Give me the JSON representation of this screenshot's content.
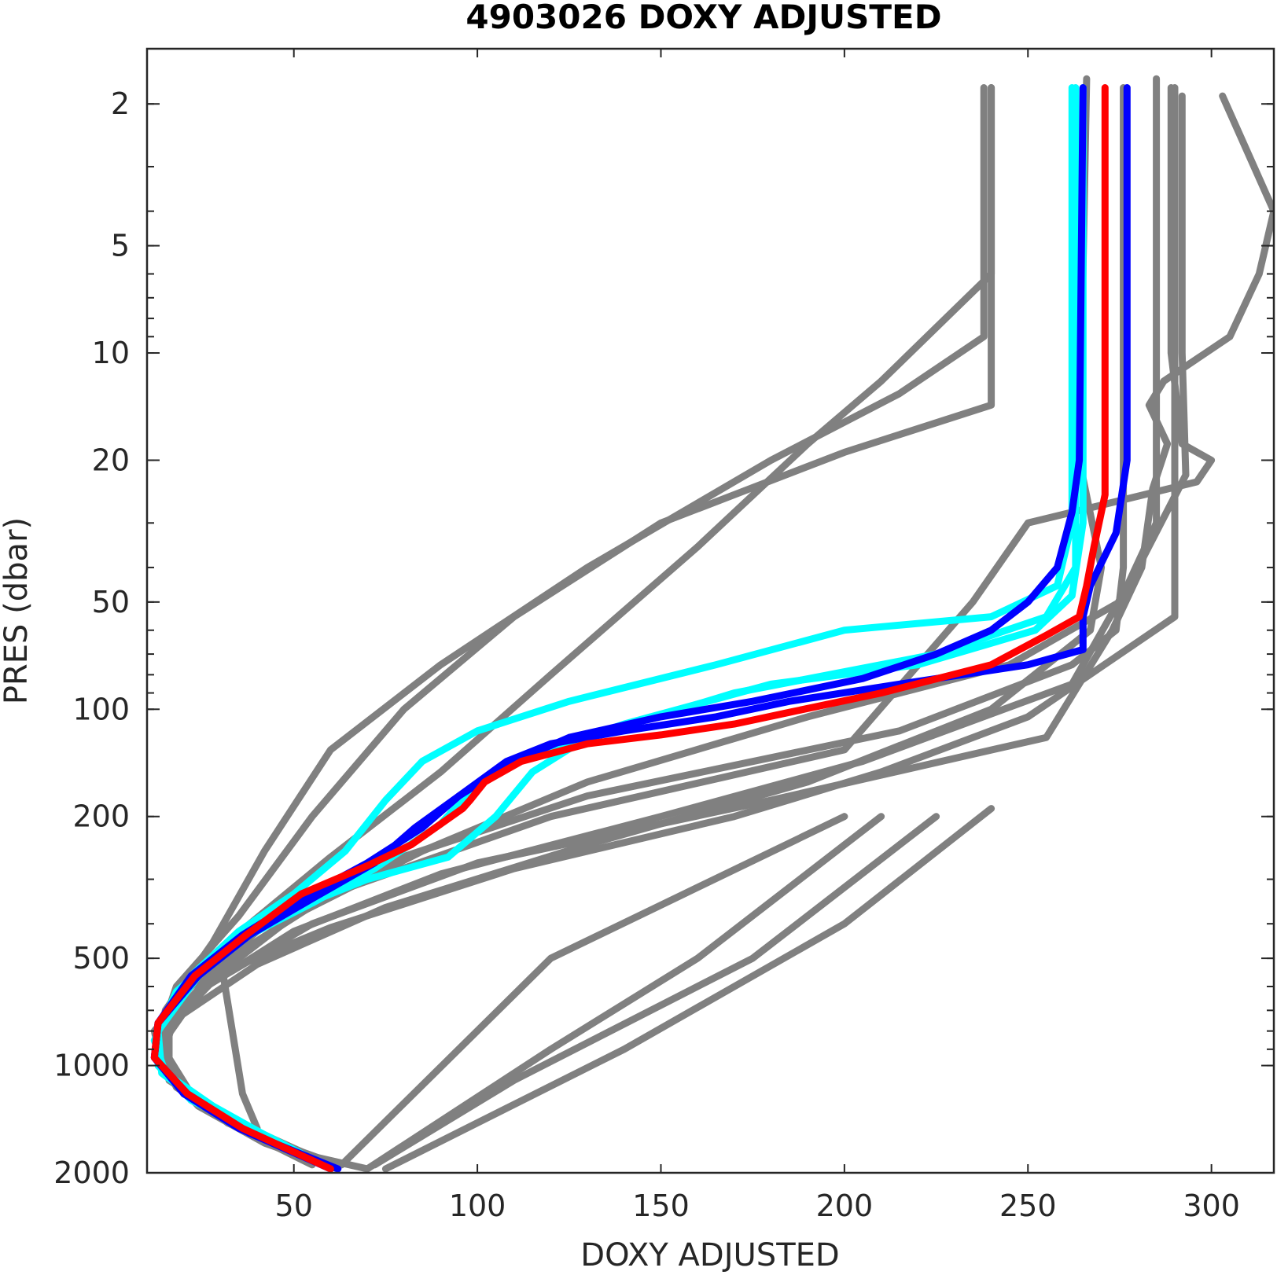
{
  "chart_data": {
    "type": "line",
    "title": "4903026  DOXY ADJUSTED",
    "xlabel": "DOXY ADJUSTED",
    "ylabel": "PRES (dbar)",
    "xlim": [
      10,
      317
    ],
    "ylim": [
      1.4,
      2000
    ],
    "y_scale": "log",
    "y_reversed": true,
    "x_ticks": [
      50,
      100,
      150,
      200,
      250,
      300
    ],
    "y_ticks": [
      2,
      5,
      10,
      20,
      50,
      100,
      200,
      500,
      1000,
      2000
    ],
    "grid": false,
    "legend": "none",
    "colors": {
      "background_profiles": "#808080",
      "recent_profiles": "#00ffff",
      "previous_profile": "#0000ff",
      "latest_profile": "#ff0000",
      "axis": "#262626"
    },
    "series": [
      {
        "color": "#808080",
        "points": [
          [
            276,
            1.8
          ],
          [
            276,
            7
          ],
          [
            276,
            40
          ],
          [
            274,
            60
          ],
          [
            262,
            75
          ],
          [
            215,
            115
          ],
          [
            130,
            175
          ],
          [
            70,
            280
          ],
          [
            40,
            420
          ],
          [
            22,
            600
          ],
          [
            12,
            800
          ],
          [
            14,
            1000
          ],
          [
            24,
            1300
          ],
          [
            42,
            1650
          ],
          [
            62,
            1950
          ]
        ]
      },
      {
        "color": "#808080",
        "points": [
          [
            238,
            1.8
          ],
          [
            238,
            9
          ],
          [
            215,
            13
          ],
          [
            180,
            20
          ],
          [
            130,
            40
          ],
          [
            90,
            75
          ],
          [
            60,
            130
          ],
          [
            42,
            250
          ],
          [
            28,
            450
          ],
          [
            15,
            700
          ],
          [
            13,
            900
          ],
          [
            22,
            1250
          ],
          [
            40,
            1600
          ],
          [
            60,
            1900
          ]
        ]
      },
      {
        "color": "#808080",
        "points": [
          [
            240,
            1.8
          ],
          [
            240,
            14
          ],
          [
            200,
            19
          ],
          [
            150,
            30
          ],
          [
            110,
            55
          ],
          [
            80,
            100
          ],
          [
            55,
            200
          ],
          [
            35,
            380
          ],
          [
            18,
            600
          ],
          [
            13,
            850
          ],
          [
            20,
            1200
          ],
          [
            38,
            1550
          ],
          [
            58,
            1900
          ]
        ]
      },
      {
        "color": "#808080",
        "points": [
          [
            285,
            1.7
          ],
          [
            285,
            30
          ],
          [
            275,
            50
          ],
          [
            245,
            75
          ],
          [
            190,
            105
          ],
          [
            130,
            160
          ],
          [
            85,
            250
          ],
          [
            50,
            380
          ],
          [
            25,
            600
          ],
          [
            13,
            900
          ],
          [
            18,
            1150
          ],
          [
            35,
            1500
          ],
          [
            55,
            1900
          ]
        ]
      },
      {
        "color": "#808080",
        "points": [
          [
            292,
            1.9
          ],
          [
            292,
            10
          ],
          [
            293,
            22
          ],
          [
            280,
            40
          ],
          [
            262,
            85
          ],
          [
            205,
            140
          ],
          [
            150,
            200
          ],
          [
            90,
            290
          ],
          [
            50,
            420
          ],
          [
            24,
            620
          ],
          [
            13,
            900
          ],
          [
            20,
            1200
          ],
          [
            40,
            1600
          ],
          [
            62,
            1950
          ]
        ]
      },
      {
        "color": "#808080",
        "points": [
          [
            289,
            1.8
          ],
          [
            289,
            10
          ],
          [
            292,
            18
          ],
          [
            300,
            20
          ],
          [
            296,
            23
          ],
          [
            250,
            30
          ],
          [
            235,
            50
          ],
          [
            200,
            130
          ],
          [
            120,
            200
          ],
          [
            60,
            330
          ],
          [
            30,
            520
          ],
          [
            14,
            800
          ],
          [
            16,
            1100
          ],
          [
            36,
            1500
          ],
          [
            58,
            1900
          ]
        ]
      },
      {
        "color": "#808080",
        "points": [
          [
            303,
            1.9
          ],
          [
            317,
            4
          ],
          [
            313,
            6
          ],
          [
            305,
            9
          ],
          [
            287,
            12
          ],
          [
            283,
            14
          ],
          [
            288,
            18
          ],
          [
            284,
            24
          ],
          [
            281,
            40
          ],
          [
            273,
            60
          ],
          [
            255,
            120
          ],
          [
            180,
            180
          ],
          [
            100,
            270
          ],
          [
            55,
            400
          ],
          [
            26,
            600
          ],
          [
            13,
            850
          ],
          [
            19,
            1150
          ],
          [
            38,
            1500
          ],
          [
            60,
            1900
          ]
        ]
      },
      {
        "color": "#808080",
        "points": [
          [
            240,
            1.8
          ],
          [
            240,
            6
          ],
          [
            210,
            12
          ],
          [
            190,
            18
          ],
          [
            160,
            35
          ],
          [
            120,
            80
          ],
          [
            90,
            150
          ],
          [
            60,
            260
          ],
          [
            38,
            400
          ],
          [
            20,
            620
          ],
          [
            13,
            850
          ],
          [
            22,
            1200
          ],
          [
            42,
            1600
          ],
          [
            62,
            1900
          ]
        ]
      },
      {
        "color": "#808080",
        "points": [
          [
            266,
            1.7
          ],
          [
            264,
            20
          ],
          [
            270,
            40
          ],
          [
            267,
            60
          ],
          [
            240,
            100
          ],
          [
            190,
            160
          ],
          [
            130,
            240
          ],
          [
            75,
            360
          ],
          [
            40,
            520
          ],
          [
            17,
            750
          ],
          [
            14,
            1000
          ],
          [
            28,
            1350
          ],
          [
            50,
            1750
          ],
          [
            70,
            1950
          ]
        ]
      },
      {
        "color": "#808080",
        "points": [
          [
            290,
            1.8
          ],
          [
            290,
            55
          ],
          [
            250,
            105
          ],
          [
            210,
            150
          ],
          [
            170,
            200
          ],
          [
            110,
            280
          ],
          [
            60,
            410
          ],
          [
            30,
            550
          ],
          [
            16,
            780
          ],
          [
            16,
            1050
          ],
          [
            32,
            1450
          ],
          [
            55,
            1850
          ]
        ]
      },
      {
        "color": "#808080",
        "points": [
          [
            30,
            500
          ],
          [
            36,
            1200
          ],
          [
            40,
            1500
          ]
        ]
      },
      {
        "color": "#808080",
        "points": [
          [
            200,
            200
          ],
          [
            120,
            500
          ],
          [
            63,
            1900
          ]
        ]
      },
      {
        "color": "#808080",
        "points": [
          [
            210,
            200
          ],
          [
            160,
            500
          ],
          [
            120,
            900
          ],
          [
            70,
            1950
          ]
        ]
      },
      {
        "color": "#808080",
        "points": [
          [
            225,
            200
          ],
          [
            175,
            500
          ],
          [
            110,
            1100
          ],
          [
            72,
            1900
          ]
        ]
      },
      {
        "color": "#808080",
        "points": [
          [
            240,
            190
          ],
          [
            200,
            400
          ],
          [
            140,
            900
          ],
          [
            75,
            1950
          ]
        ]
      },
      {
        "color": "#00ffff",
        "points": [
          [
            262,
            1.8
          ],
          [
            262,
            30
          ],
          [
            258,
            45
          ],
          [
            240,
            55
          ],
          [
            200,
            60
          ],
          [
            165,
            75
          ],
          [
            125,
            95
          ],
          [
            100,
            115
          ],
          [
            85,
            140
          ],
          [
            75,
            180
          ],
          [
            64,
            250
          ],
          [
            50,
            330
          ],
          [
            35,
            420
          ],
          [
            22,
            560
          ],
          [
            13,
            780
          ],
          [
            13,
            1000
          ],
          [
            22,
            1250
          ],
          [
            40,
            1550
          ],
          [
            58,
            1900
          ]
        ]
      },
      {
        "color": "#00ffff",
        "points": [
          [
            265,
            1.8
          ],
          [
            265,
            30
          ],
          [
            262,
            48
          ],
          [
            252,
            60
          ],
          [
            220,
            75
          ],
          [
            180,
            85
          ],
          [
            140,
            110
          ],
          [
            110,
            140
          ],
          [
            98,
            170
          ],
          [
            90,
            210
          ],
          [
            72,
            280
          ],
          [
            55,
            350
          ],
          [
            38,
            430
          ],
          [
            24,
            560
          ],
          [
            13,
            800
          ],
          [
            14,
            1050
          ],
          [
            26,
            1300
          ],
          [
            44,
            1600
          ],
          [
            60,
            1950
          ]
        ]
      },
      {
        "color": "#00ffff",
        "points": [
          [
            263,
            1.8
          ],
          [
            263,
            40
          ],
          [
            255,
            55
          ],
          [
            225,
            70
          ],
          [
            170,
            90
          ],
          [
            130,
            120
          ],
          [
            115,
            150
          ],
          [
            105,
            200
          ],
          [
            92,
            260
          ],
          [
            70,
            300
          ],
          [
            48,
            370
          ],
          [
            30,
            480
          ],
          [
            18,
            620
          ],
          [
            12,
            850
          ],
          [
            15,
            1050
          ],
          [
            28,
            1300
          ],
          [
            46,
            1650
          ],
          [
            60,
            1950
          ]
        ]
      },
      {
        "color": "#0000ff",
        "points": [
          [
            265,
            1.8
          ],
          [
            264,
            20
          ],
          [
            262,
            28
          ],
          [
            258,
            40
          ],
          [
            250,
            50
          ],
          [
            240,
            60
          ],
          [
            225,
            70
          ],
          [
            205,
            82
          ],
          [
            175,
            95
          ],
          [
            150,
            105
          ],
          [
            125,
            120
          ],
          [
            110,
            140
          ],
          [
            95,
            175
          ],
          [
            83,
            215
          ],
          [
            72,
            270
          ],
          [
            55,
            340
          ],
          [
            38,
            430
          ],
          [
            24,
            560
          ],
          [
            13,
            760
          ],
          [
            12,
            950
          ],
          [
            20,
            1200
          ],
          [
            35,
            1500
          ],
          [
            60,
            1950
          ]
        ]
      },
      {
        "color": "#0000ff",
        "points": [
          [
            277,
            1.8
          ],
          [
            277,
            20
          ],
          [
            274,
            32
          ],
          [
            267,
            45
          ],
          [
            265,
            55
          ],
          [
            265,
            68
          ],
          [
            250,
            75
          ],
          [
            215,
            85
          ],
          [
            185,
            95
          ],
          [
            165,
            105
          ],
          [
            140,
            115
          ],
          [
            120,
            125
          ],
          [
            108,
            140
          ],
          [
            95,
            175
          ],
          [
            85,
            215
          ],
          [
            70,
            270
          ],
          [
            52,
            340
          ],
          [
            36,
            430
          ],
          [
            22,
            560
          ],
          [
            13,
            760
          ],
          [
            12,
            950
          ],
          [
            21,
            1200
          ],
          [
            38,
            1550
          ],
          [
            62,
            1950
          ]
        ]
      },
      {
        "color": "#ff0000",
        "points": [
          [
            271,
            1.8
          ],
          [
            271,
            25
          ],
          [
            268,
            35
          ],
          [
            266,
            45
          ],
          [
            264,
            55
          ],
          [
            255,
            62
          ],
          [
            240,
            75
          ],
          [
            210,
            90
          ],
          [
            185,
            102
          ],
          [
            170,
            110
          ],
          [
            150,
            118
          ],
          [
            130,
            125
          ],
          [
            112,
            140
          ],
          [
            102,
            160
          ],
          [
            98,
            180
          ],
          [
            96,
            190
          ],
          [
            90,
            210
          ],
          [
            82,
            240
          ],
          [
            70,
            275
          ],
          [
            52,
            330
          ],
          [
            37,
            430
          ],
          [
            23,
            560
          ],
          [
            13,
            760
          ],
          [
            12,
            950
          ],
          [
            21,
            1200
          ],
          [
            36,
            1500
          ],
          [
            60,
            1950
          ]
        ]
      }
    ]
  }
}
